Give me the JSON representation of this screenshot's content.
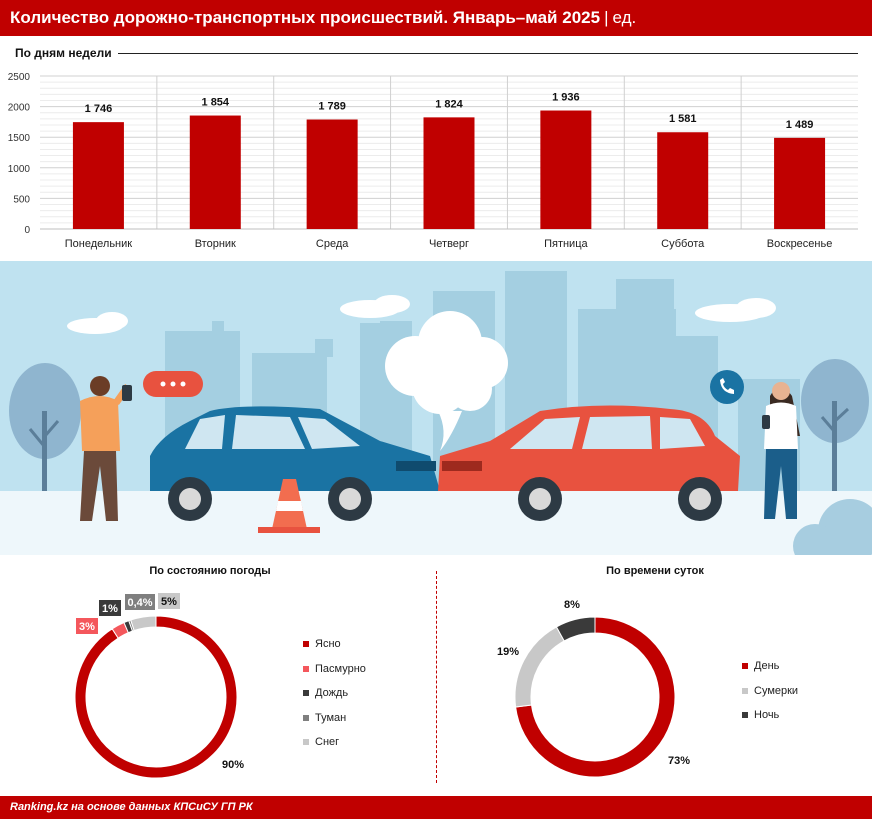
{
  "header": {
    "title": "Количество дорожно-транспортных происшествий. Январь–май 2025",
    "separator": "|",
    "unit": "ед."
  },
  "colors": {
    "brand": "#c00000",
    "weather": [
      "#c00000",
      "#f4575c",
      "#3a3a3a",
      "#7f7f7f",
      "#c8c8c8"
    ],
    "time": [
      "#c00000",
      "#c8c8c8",
      "#3a3a3a"
    ]
  },
  "chart_data": [
    {
      "type": "bar",
      "title": "По дням недели",
      "categories": [
        "Понедельник",
        "Вторник",
        "Среда",
        "Четверг",
        "Пятница",
        "Суббота",
        "Воскресенье"
      ],
      "values": [
        1746,
        1854,
        1789,
        1824,
        1936,
        1581,
        1489
      ],
      "data_labels": [
        "1 746",
        "1 854",
        "1 789",
        "1 824",
        "1 936",
        "1 581",
        "1 489"
      ],
      "ylim": [
        0,
        2500
      ],
      "yticks": [
        0,
        500,
        1000,
        1500,
        2000,
        2500
      ],
      "grid": true
    },
    {
      "type": "pie",
      "title": "По состоянию погоды",
      "categories": [
        "Ясно",
        "Пасмурно",
        "Дождь",
        "Туман",
        "Снег"
      ],
      "values": [
        90.0,
        2.6,
        1.0,
        0.4,
        5.0
      ],
      "data_labels": [
        "90%",
        "3%",
        "1%",
        "0,4%",
        "5%"
      ],
      "legend": "right"
    },
    {
      "type": "pie",
      "title": "По времени суток",
      "categories": [
        "День",
        "Сумерки",
        "Ночь"
      ],
      "values": [
        73,
        19,
        8
      ],
      "data_labels": [
        "73%",
        "19%",
        "8%"
      ],
      "legend": "right"
    }
  ],
  "footer": {
    "source": "Ranking.kz на основе данных КПСиСУ ГП РК"
  }
}
